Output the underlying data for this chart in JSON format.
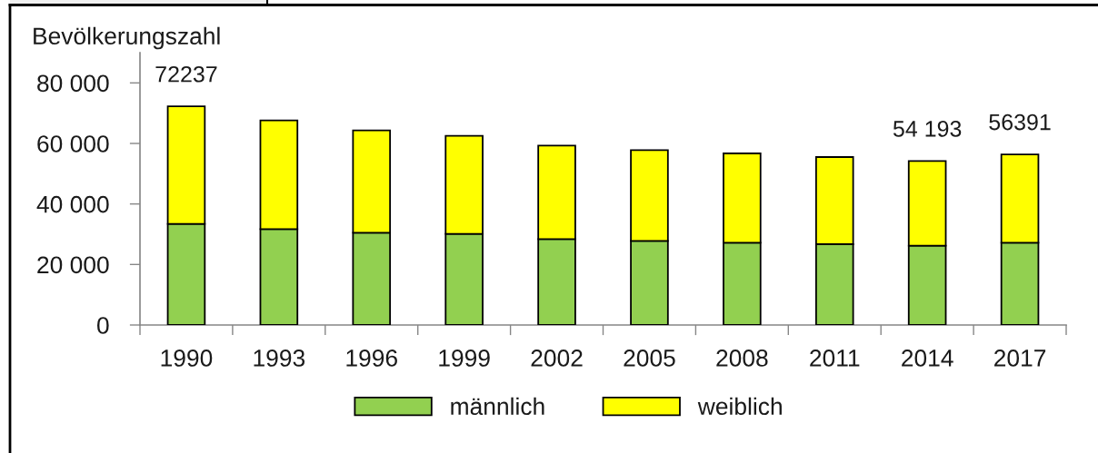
{
  "chart_data": {
    "type": "bar",
    "ylabel": "Bevölkerungszahl",
    "categories": [
      "1990",
      "1993",
      "1996",
      "1999",
      "2002",
      "2005",
      "2008",
      "2011",
      "2014",
      "2017"
    ],
    "series": [
      {
        "name": "männlich",
        "color": "#92d050",
        "values": [
          33400,
          31700,
          30500,
          30100,
          28400,
          27800,
          27200,
          26700,
          26200,
          27200
        ]
      },
      {
        "name": "weiblich",
        "color": "#ffff00",
        "values": [
          38837,
          35900,
          33800,
          32400,
          30900,
          30000,
          29500,
          28800,
          27993,
          29191
        ]
      }
    ],
    "stacked": true,
    "totals": [
      "72237",
      null,
      null,
      null,
      null,
      null,
      null,
      null,
      "54 193",
      "56391"
    ],
    "ylim": [
      0,
      90000
    ],
    "yticks": [
      0,
      {
        "value": 20000,
        "label": "20 000"
      },
      {
        "value": 40000,
        "label": "40 000"
      },
      {
        "value": 60000,
        "label": "60 000"
      },
      {
        "value": 80000,
        "label": "80 000"
      }
    ],
    "legend": "bottom"
  }
}
